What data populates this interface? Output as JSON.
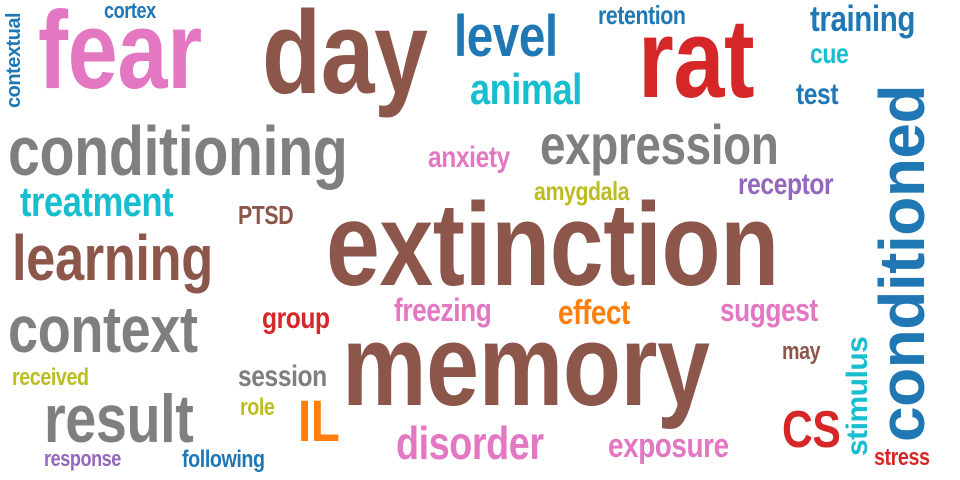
{
  "colors": {
    "pink": "#e377c2",
    "brown": "#8c564b",
    "blue": "#1f77b4",
    "cyan": "#17becf",
    "red": "#d62728",
    "gray": "#7f7f7f",
    "purple": "#9467bd",
    "olive": "#bcbd22",
    "orange": "#ff7f0e"
  },
  "words": [
    {
      "text": "extinction",
      "color": "brown"
    },
    {
      "text": "memory",
      "color": "brown"
    },
    {
      "text": "fear",
      "color": "pink"
    },
    {
      "text": "day",
      "color": "brown"
    },
    {
      "text": "rat",
      "color": "red"
    },
    {
      "text": "conditioning",
      "color": "gray"
    },
    {
      "text": "conditioned",
      "color": "blue"
    },
    {
      "text": "learning",
      "color": "brown"
    },
    {
      "text": "context",
      "color": "gray"
    },
    {
      "text": "result",
      "color": "gray"
    },
    {
      "text": "expression",
      "color": "gray"
    },
    {
      "text": "level",
      "color": "blue"
    },
    {
      "text": "animal",
      "color": "cyan"
    },
    {
      "text": "disorder",
      "color": "pink"
    },
    {
      "text": "treatment",
      "color": "cyan"
    },
    {
      "text": "CS",
      "color": "red"
    },
    {
      "text": "exposure",
      "color": "pink"
    },
    {
      "text": "training",
      "color": "blue"
    },
    {
      "text": "IL",
      "color": "orange"
    },
    {
      "text": "anxiety",
      "color": "pink"
    },
    {
      "text": "receptor",
      "color": "purple"
    },
    {
      "text": "session",
      "color": "gray"
    },
    {
      "text": "freezing",
      "color": "pink"
    },
    {
      "text": "suggest",
      "color": "pink"
    },
    {
      "text": "effect",
      "color": "orange"
    },
    {
      "text": "group",
      "color": "red"
    },
    {
      "text": "retention",
      "color": "blue"
    },
    {
      "text": "stimulus",
      "color": "cyan"
    },
    {
      "text": "test",
      "color": "blue"
    },
    {
      "text": "cue",
      "color": "cyan"
    },
    {
      "text": "amygdala",
      "color": "olive"
    },
    {
      "text": "PTSD",
      "color": "brown"
    },
    {
      "text": "received",
      "color": "olive"
    },
    {
      "text": "following",
      "color": "blue"
    },
    {
      "text": "cortex",
      "color": "blue"
    },
    {
      "text": "role",
      "color": "olive"
    },
    {
      "text": "stress",
      "color": "red"
    },
    {
      "text": "may",
      "color": "brown"
    },
    {
      "text": "response",
      "color": "purple"
    },
    {
      "text": "contextual",
      "color": "blue"
    }
  ]
}
